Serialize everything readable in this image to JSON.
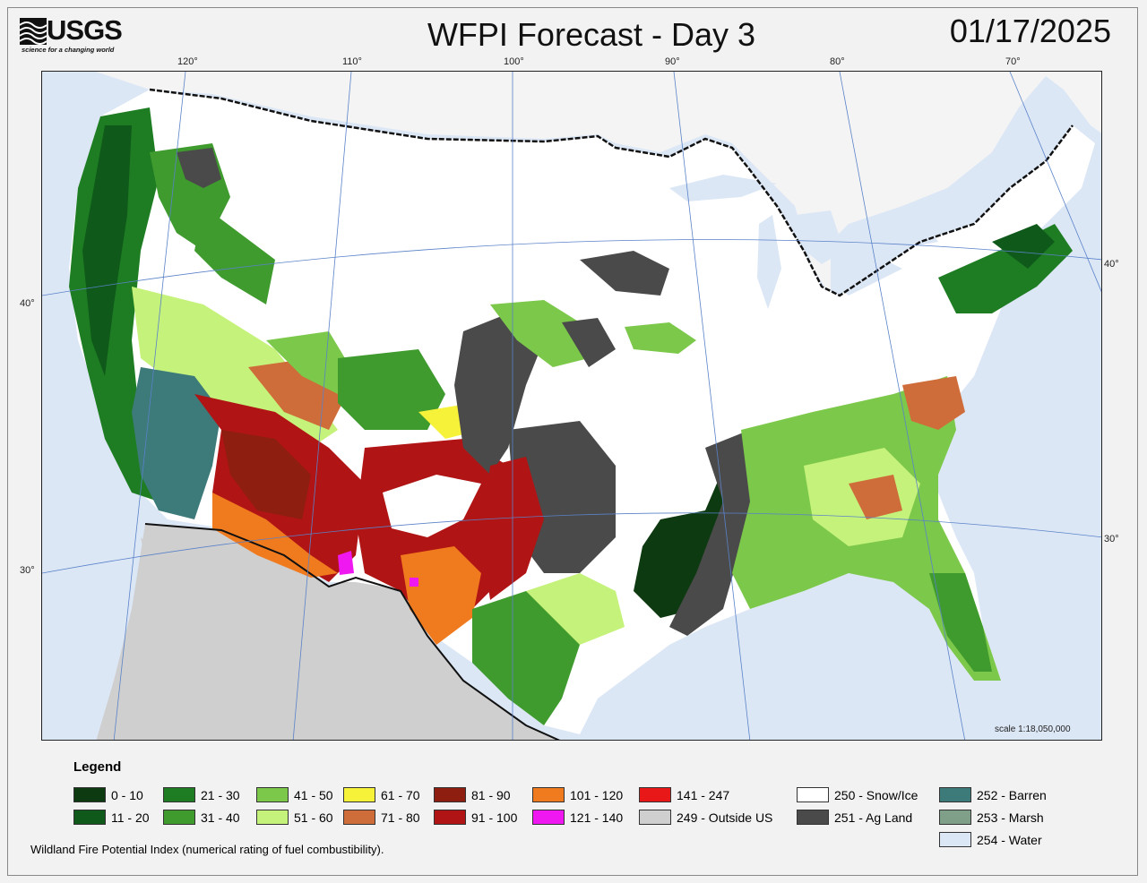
{
  "header": {
    "logo_text": "USGS",
    "logo_tagline": "science for a changing world",
    "title": "WFPI Forecast - Day 3",
    "date": "01/17/2025"
  },
  "map": {
    "longitude_labels": [
      "120°",
      "110°",
      "100°",
      "90°",
      "80°",
      "70°"
    ],
    "latitude_labels": [
      "40°",
      "30°",
      "40°",
      "30°"
    ],
    "scale": "scale 1:18,050,000"
  },
  "legend": {
    "title": "Legend",
    "items": [
      {
        "label": "0 - 10",
        "color": "#0d3a10"
      },
      {
        "label": "11 - 20",
        "color": "#0f5a1a"
      },
      {
        "label": "21 - 30",
        "color": "#1e7d22"
      },
      {
        "label": "31 - 40",
        "color": "#3f9b2e"
      },
      {
        "label": "41 - 50",
        "color": "#7cc84a"
      },
      {
        "label": "51 - 60",
        "color": "#c5f27a"
      },
      {
        "label": "61 - 70",
        "color": "#f6f23a"
      },
      {
        "label": "71 - 80",
        "color": "#cf6d3a"
      },
      {
        "label": "81 - 90",
        "color": "#8e1e10"
      },
      {
        "label": "91 - 100",
        "color": "#b01414"
      },
      {
        "label": "101 - 120",
        "color": "#f07a1e"
      },
      {
        "label": "121 - 140",
        "color": "#f018f0"
      },
      {
        "label": "141 - 247",
        "color": "#e81818"
      },
      {
        "label": "249 - Outside US",
        "color": "#cfcfcf"
      },
      {
        "label": "250 - Snow/Ice",
        "color": "#ffffff"
      },
      {
        "label": "251 - Ag Land",
        "color": "#4a4a4a"
      },
      {
        "label": "252 - Barren",
        "color": "#3d7a7a"
      },
      {
        "label": "253 - Marsh",
        "color": "#7f9f88"
      },
      {
        "label": "254 - Water",
        "color": "#dce7f6"
      }
    ]
  },
  "footnote": "Wildland Fire Potential Index (numerical rating of fuel combustibility)."
}
